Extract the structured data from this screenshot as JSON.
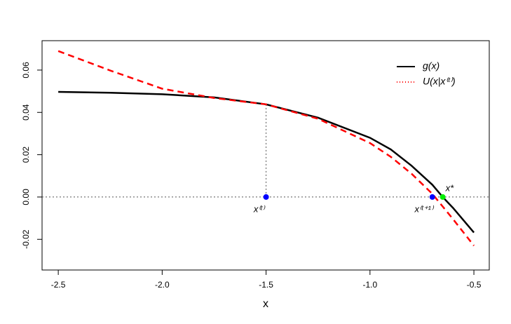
{
  "chart_data": {
    "type": "line",
    "xlabel": "x",
    "x": [
      -2.5,
      -2.25,
      -2.0,
      -1.75,
      -1.5,
      -1.25,
      -1.0,
      -0.9,
      -0.8,
      -0.7,
      -0.65,
      -0.6,
      -0.5
    ],
    "series": [
      {
        "name": "g(x)",
        "color": "#000000",
        "style": "solid",
        "values": [
          0.0497,
          0.0493,
          0.0486,
          0.0471,
          0.0438,
          0.0375,
          0.028,
          0.0225,
          0.0148,
          0.0058,
          0.0,
          -0.0052,
          -0.0168
        ]
      },
      {
        "name": "U(x|x⁽ᵗ⁾)",
        "color": "#ff0000",
        "style": "dashed",
        "values": [
          0.069,
          0.0598,
          0.0512,
          0.0468,
          0.0438,
          0.037,
          0.0255,
          0.019,
          0.011,
          0.0015,
          -0.0045,
          -0.0105,
          -0.023
        ]
      }
    ],
    "points": [
      {
        "label": "x⁽ᵗ⁾",
        "x": -1.5,
        "y": 0,
        "color": "#0000ff"
      },
      {
        "label": "x⁽ᵗ⁺¹⁾",
        "x": -0.7,
        "y": 0,
        "color": "#0000ff"
      },
      {
        "label": "x*",
        "x": -0.65,
        "y": 0,
        "color": "#00ee00"
      }
    ],
    "hline": 0,
    "xlim": [
      -2.578,
      -0.426
    ],
    "ylim": [
      -0.0345,
      0.0739
    ],
    "xticks": [
      -2.5,
      {
        "value": -2,
        "label": "-2.0"
      },
      -1.5,
      {
        "value": -1,
        "label": "-1.0"
      },
      -0.5
    ],
    "yticks": [
      {
        "value": -0.02,
        "label": "-0.02"
      },
      {
        "value": 0,
        "label": "0.00"
      },
      {
        "value": 0.02,
        "label": "0.02"
      },
      {
        "value": 0.04,
        "label": "0.04"
      },
      {
        "value": 0.06,
        "label": "0.06"
      }
    ],
    "legend": "top-right"
  }
}
